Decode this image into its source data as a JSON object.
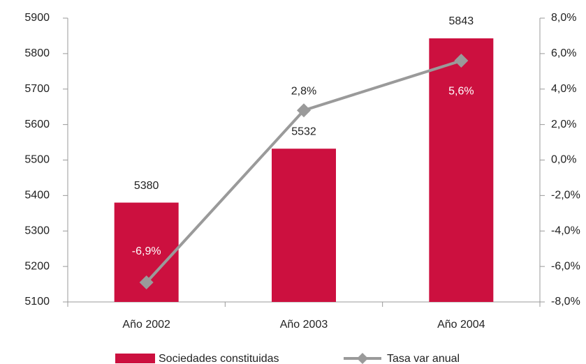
{
  "chart_data": {
    "type": "bar",
    "categories": [
      "Año 2002",
      "Año 2003",
      "Año 2004"
    ],
    "series": [
      {
        "name": "Sociedades constituidas",
        "type": "bar",
        "color": "#cc103f",
        "values": [
          5380,
          5532,
          5843
        ]
      },
      {
        "name": "Tasa var anual",
        "type": "line",
        "color": "#9a9a9a",
        "axis": "y2",
        "values": [
          -6.9,
          2.8,
          5.6
        ],
        "value_labels": [
          "-6,9%",
          "2,8%",
          "5,6%"
        ]
      }
    ],
    "ylim": [
      5100,
      5900
    ],
    "yticks": [
      5100,
      5200,
      5300,
      5400,
      5500,
      5600,
      5700,
      5800,
      5900
    ],
    "y2lim": [
      -8,
      8
    ],
    "y2ticks": [
      {
        "value": -8,
        "label": "-8,0%"
      },
      {
        "value": -6,
        "label": "-6,0%"
      },
      {
        "value": -4,
        "label": "-4,0%"
      },
      {
        "value": -2,
        "label": "-2,0%"
      },
      {
        "value": 0,
        "label": "0,0%"
      },
      {
        "value": 2,
        "label": "2,0%"
      },
      {
        "value": 4,
        "label": "4,0%"
      },
      {
        "value": 6,
        "label": "6,0%"
      },
      {
        "value": 8,
        "label": "8,0%"
      }
    ],
    "grid": false,
    "legend": "bottom"
  }
}
